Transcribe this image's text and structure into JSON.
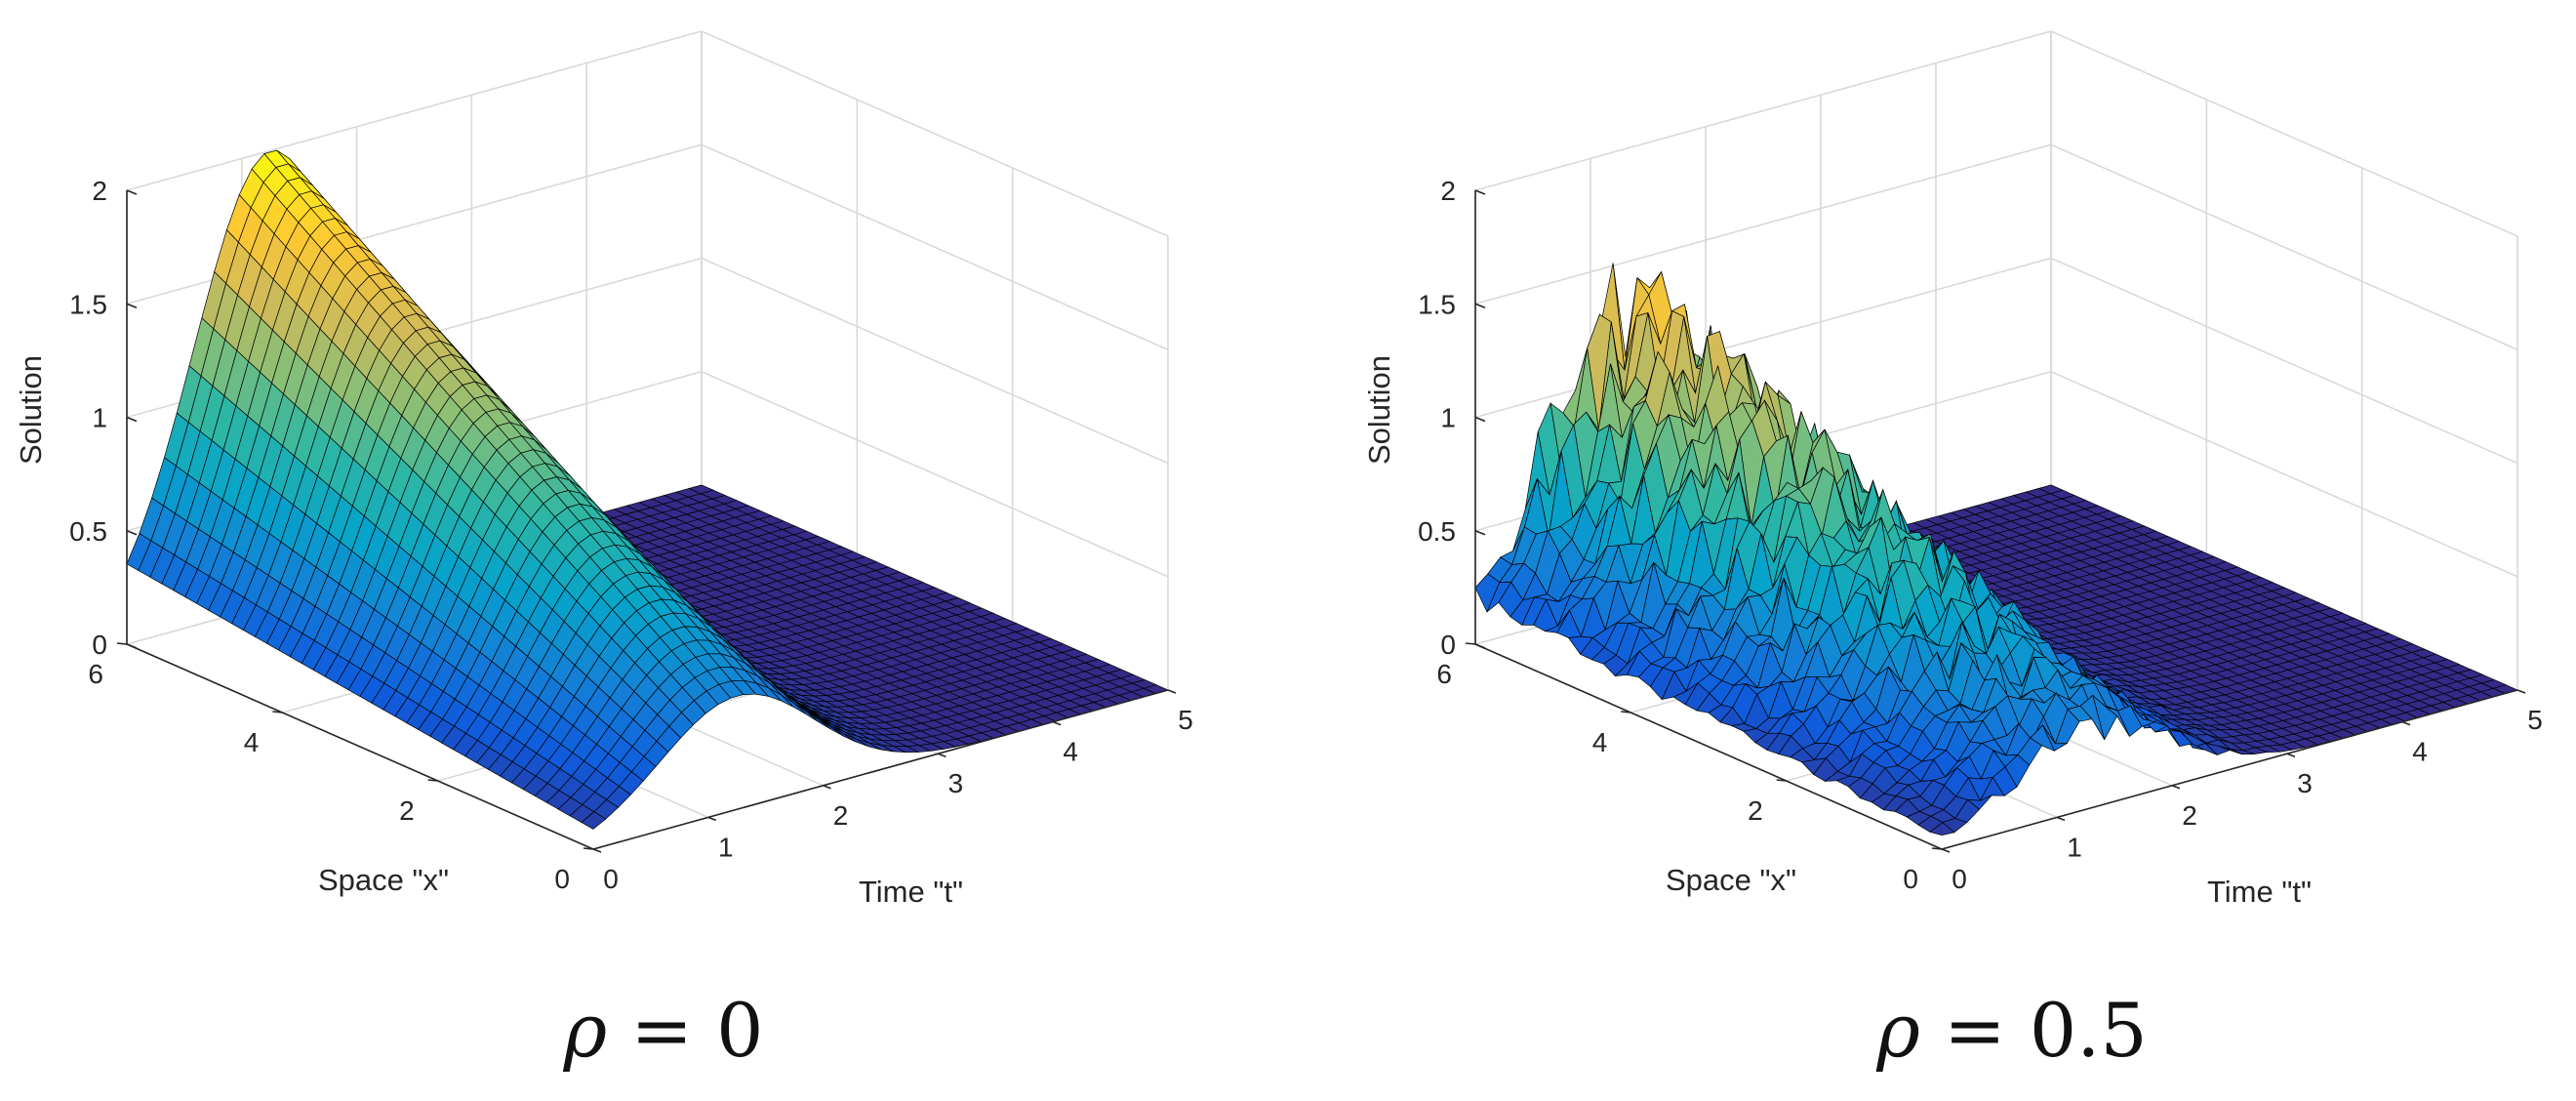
{
  "chart_data": [
    {
      "type": "surface",
      "caption_var": "ρ",
      "caption_rest": " = 0",
      "rho": 0,
      "xlabel": "Time \"t\"",
      "ylabel": "Space \"x\"",
      "zlabel": "Solution",
      "x_ticks": [
        "0",
        "1",
        "2",
        "3",
        "4",
        "5"
      ],
      "y_ticks": [
        "0",
        "2",
        "4",
        "6"
      ],
      "z_ticks": [
        "0",
        "0.5",
        "1",
        "1.5",
        "2"
      ],
      "xlim": [
        0,
        5
      ],
      "ylim": [
        0,
        6
      ],
      "zlim": [
        0,
        2
      ],
      "colormap": "parula",
      "surface": {
        "peak_t": 1.25,
        "peak_x": 4.6,
        "peak_value": 2.0,
        "trough_value": 0.0,
        "noise": 0
      }
    },
    {
      "type": "surface",
      "caption_var": "ρ",
      "caption_rest": " = 0.5",
      "rho": 0.5,
      "xlabel": "Time \"t\"",
      "ylabel": "Space \"x\"",
      "zlabel": "Solution",
      "x_ticks": [
        "0",
        "1",
        "2",
        "3",
        "4",
        "5"
      ],
      "y_ticks": [
        "0",
        "2",
        "4",
        "6"
      ],
      "z_ticks": [
        "0",
        "0.5",
        "1",
        "1.5",
        "2"
      ],
      "xlim": [
        0,
        5
      ],
      "ylim": [
        0,
        6
      ],
      "zlim": [
        0,
        2
      ],
      "colormap": "parula",
      "surface": {
        "peak_t": 1.3,
        "peak_x": 4.2,
        "peak_value": 1.6,
        "trough_value": 0.0,
        "noise": 0.35
      }
    }
  ],
  "colors": {
    "parula": [
      "#352a87",
      "#0f5cdd",
      "#1481d6",
      "#06a4ca",
      "#2eb7a4",
      "#87bf77",
      "#d1bb59",
      "#fec832",
      "#f9fb0e"
    ],
    "edge": "#000000",
    "grid": "#d9d9d9",
    "text": "#262626"
  }
}
